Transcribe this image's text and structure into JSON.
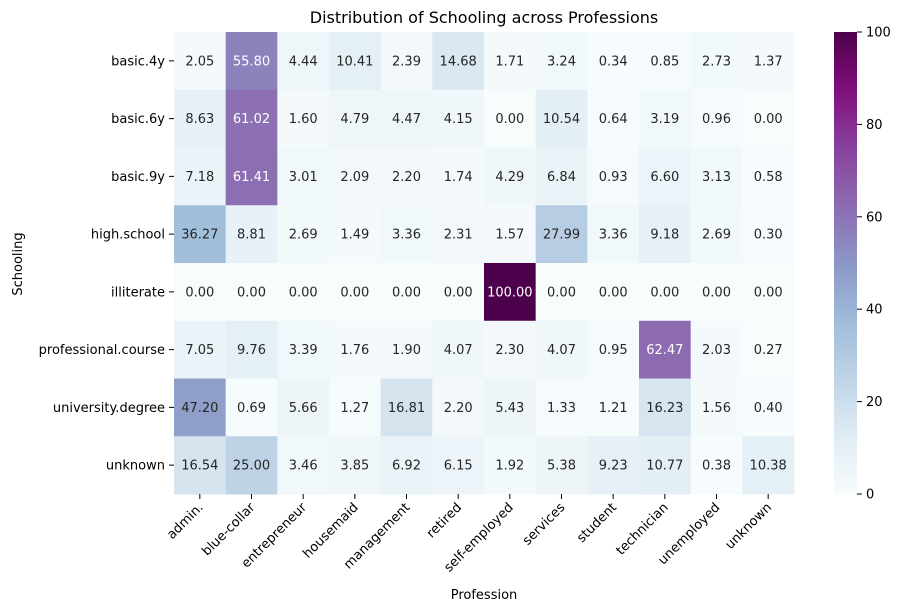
{
  "chart_data": {
    "type": "heatmap",
    "title": "Distribution of Schooling across Professions",
    "xlabel": "Profession",
    "ylabel": "Schooling",
    "x_categories": [
      "admin.",
      "blue-collar",
      "entrepreneur",
      "housemaid",
      "management",
      "retired",
      "self-employed",
      "services",
      "student",
      "technician",
      "unemployed",
      "unknown"
    ],
    "y_categories": [
      "basic.4y",
      "basic.6y",
      "basic.9y",
      "high.school",
      "illiterate",
      "professional.course",
      "university.degree",
      "unknown"
    ],
    "values": [
      [
        2.05,
        55.8,
        4.44,
        10.41,
        2.39,
        14.68,
        1.71,
        3.24,
        0.34,
        0.85,
        2.73,
        1.37
      ],
      [
        8.63,
        61.02,
        1.6,
        4.79,
        4.47,
        4.15,
        0.0,
        10.54,
        0.64,
        3.19,
        0.96,
        0.0
      ],
      [
        7.18,
        61.41,
        3.01,
        2.09,
        2.2,
        1.74,
        4.29,
        6.84,
        0.93,
        6.6,
        3.13,
        0.58
      ],
      [
        36.27,
        8.81,
        2.69,
        1.49,
        3.36,
        2.31,
        1.57,
        27.99,
        3.36,
        9.18,
        2.69,
        0.3
      ],
      [
        0.0,
        0.0,
        0.0,
        0.0,
        0.0,
        0.0,
        100.0,
        0.0,
        0.0,
        0.0,
        0.0,
        0.0
      ],
      [
        7.05,
        9.76,
        3.39,
        1.76,
        1.9,
        4.07,
        2.3,
        4.07,
        0.95,
        62.47,
        2.03,
        0.27
      ],
      [
        47.2,
        0.69,
        5.66,
        1.27,
        16.81,
        2.2,
        5.43,
        1.33,
        1.21,
        16.23,
        1.56,
        0.4
      ],
      [
        16.54,
        25.0,
        3.46,
        3.85,
        6.92,
        6.15,
        1.92,
        5.38,
        9.23,
        10.77,
        0.38,
        10.38
      ]
    ],
    "value_format": "2 decimals",
    "colormap": "BuPu",
    "colormap_stops": [
      "#f7fcfd",
      "#e0ecf4",
      "#bfd3e6",
      "#9ebcda",
      "#8c96c6",
      "#8c6bb1",
      "#88419d",
      "#810f7c",
      "#4d004b"
    ],
    "vmin": 0,
    "vmax": 100,
    "colorbar_ticks": [
      0,
      20,
      40,
      60,
      80,
      100
    ],
    "colorbar_tick_labels": [
      "0",
      "20",
      "40",
      "60",
      "80",
      "100"
    ],
    "grid": false,
    "legend": "colorbar-right"
  }
}
